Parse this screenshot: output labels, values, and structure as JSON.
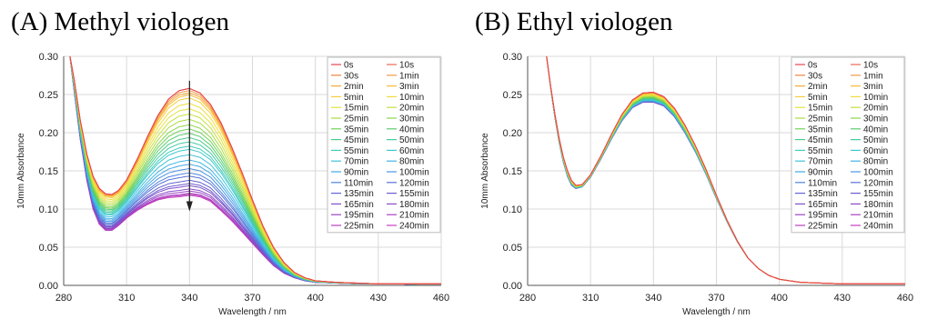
{
  "chart_data": [
    {
      "type": "line",
      "title": "(A) Methyl viologen",
      "xlabel": "Wavelength / nm",
      "ylabel": "10mm Absorbance",
      "xlim": [
        280,
        460
      ],
      "ylim": [
        0,
        0.3
      ],
      "xticks": [
        "280",
        "310",
        "340",
        "370",
        "400",
        "430",
        "460"
      ],
      "yticks": [
        "0.00",
        "0.05",
        "0.10",
        "0.15",
        "0.20",
        "0.25",
        "0.30"
      ],
      "grid": true,
      "legend_position": "top-right",
      "annotation": "downward arrow at 340 nm: absorbance decreasing with time",
      "profile": {
        "x": [
          283,
          285,
          288,
          291,
          294,
          297,
          300,
          303,
          306,
          310,
          315,
          320,
          325,
          330,
          335,
          340,
          345,
          350,
          355,
          360,
          365,
          370,
          375,
          380,
          385,
          390,
          395,
          400,
          410,
          420,
          430,
          440,
          450,
          460
        ],
        "start": [
          0.3,
          0.27,
          0.215,
          0.172,
          0.143,
          0.127,
          0.12,
          0.119,
          0.124,
          0.138,
          0.165,
          0.195,
          0.223,
          0.244,
          0.255,
          0.258,
          0.252,
          0.237,
          0.213,
          0.182,
          0.148,
          0.112,
          0.078,
          0.05,
          0.03,
          0.017,
          0.01,
          0.006,
          0.004,
          0.003,
          0.002,
          0.002,
          0.002,
          0.002
        ],
        "end": [
          0.3,
          0.255,
          0.19,
          0.138,
          0.1,
          0.08,
          0.072,
          0.072,
          0.078,
          0.088,
          0.098,
          0.106,
          0.112,
          0.115,
          0.116,
          0.118,
          0.116,
          0.11,
          0.098,
          0.085,
          0.07,
          0.055,
          0.04,
          0.026,
          0.016,
          0.01,
          0.006,
          0.004,
          0.003,
          0.002,
          0.002,
          0.002,
          0.001,
          0.001
        ]
      },
      "series": [
        {
          "name": "0s",
          "fraction": 0.0,
          "color": "#e8434f"
        },
        {
          "name": "10s",
          "fraction": 0.0,
          "color": "#ea6a58"
        },
        {
          "name": "30s",
          "fraction": 0.0,
          "color": "#ee8245"
        },
        {
          "name": "1min",
          "fraction": 0.02,
          "color": "#f29a48"
        },
        {
          "name": "2min",
          "fraction": 0.04,
          "color": "#f5a93b"
        },
        {
          "name": "3min",
          "fraction": 0.06,
          "color": "#f7bd3c"
        },
        {
          "name": "5min",
          "fraction": 0.09,
          "color": "#f5cf3a"
        },
        {
          "name": "10min",
          "fraction": 0.14,
          "color": "#f1dc3c"
        },
        {
          "name": "15min",
          "fraction": 0.19,
          "color": "#e3e23c"
        },
        {
          "name": "20min",
          "fraction": 0.24,
          "color": "#c6e03e"
        },
        {
          "name": "25min",
          "fraction": 0.29,
          "color": "#a9dc44"
        },
        {
          "name": "30min",
          "fraction": 0.34,
          "color": "#8bd64c"
        },
        {
          "name": "35min",
          "fraction": 0.38,
          "color": "#6fd159"
        },
        {
          "name": "40min",
          "fraction": 0.42,
          "color": "#58cc6c"
        },
        {
          "name": "45min",
          "fraction": 0.46,
          "color": "#4acb86"
        },
        {
          "name": "50min",
          "fraction": 0.5,
          "color": "#43cba1"
        },
        {
          "name": "55min",
          "fraction": 0.54,
          "color": "#40ccbb"
        },
        {
          "name": "60min",
          "fraction": 0.57,
          "color": "#3ec9cf"
        },
        {
          "name": "70min",
          "fraction": 0.62,
          "color": "#40c2dd"
        },
        {
          "name": "80min",
          "fraction": 0.67,
          "color": "#42b6e5"
        },
        {
          "name": "90min",
          "fraction": 0.71,
          "color": "#46a6e6"
        },
        {
          "name": "100min",
          "fraction": 0.75,
          "color": "#4b94e3"
        },
        {
          "name": "110min",
          "fraction": 0.79,
          "color": "#5082de"
        },
        {
          "name": "120min",
          "fraction": 0.82,
          "color": "#5872d8"
        },
        {
          "name": "135min",
          "fraction": 0.86,
          "color": "#6364d2"
        },
        {
          "name": "155min",
          "fraction": 0.89,
          "color": "#705acd"
        },
        {
          "name": "165min",
          "fraction": 0.91,
          "color": "#7d52c9"
        },
        {
          "name": "180min",
          "fraction": 0.94,
          "color": "#8b4ac6"
        },
        {
          "name": "195min",
          "fraction": 0.96,
          "color": "#9a45c4"
        },
        {
          "name": "210min",
          "fraction": 0.98,
          "color": "#aa41c2"
        },
        {
          "name": "225min",
          "fraction": 0.99,
          "color": "#b940c0"
        },
        {
          "name": "240min",
          "fraction": 1.0,
          "color": "#c63fbd"
        }
      ]
    },
    {
      "type": "line",
      "title": "(B) Ethyl viologen",
      "xlabel": "Wavelength / nm",
      "ylabel": "10mm Absorbance",
      "xlim": [
        280,
        460
      ],
      "ylim": [
        0,
        0.3
      ],
      "xticks": [
        "280",
        "310",
        "340",
        "370",
        "400",
        "430",
        "460"
      ],
      "yticks": [
        "0.00",
        "0.05",
        "0.10",
        "0.15",
        "0.20",
        "0.25",
        "0.30"
      ],
      "grid": true,
      "legend_position": "top-right",
      "profile": {
        "x": [
          289,
          291,
          293,
          295,
          297,
          299,
          301,
          303,
          306,
          310,
          315,
          320,
          325,
          330,
          335,
          340,
          345,
          350,
          355,
          360,
          365,
          370,
          375,
          380,
          385,
          390,
          395,
          400,
          410,
          420,
          430,
          440,
          450,
          460
        ],
        "start": [
          0.3,
          0.26,
          0.224,
          0.193,
          0.168,
          0.15,
          0.137,
          0.131,
          0.132,
          0.145,
          0.17,
          0.198,
          0.224,
          0.243,
          0.252,
          0.253,
          0.247,
          0.232,
          0.21,
          0.183,
          0.152,
          0.118,
          0.086,
          0.058,
          0.036,
          0.022,
          0.013,
          0.008,
          0.004,
          0.003,
          0.002,
          0.002,
          0.002,
          0.002
        ],
        "end": [
          0.3,
          0.258,
          0.22,
          0.188,
          0.162,
          0.143,
          0.131,
          0.127,
          0.129,
          0.142,
          0.166,
          0.192,
          0.216,
          0.233,
          0.24,
          0.24,
          0.235,
          0.221,
          0.2,
          0.175,
          0.146,
          0.114,
          0.084,
          0.057,
          0.036,
          0.022,
          0.013,
          0.008,
          0.004,
          0.003,
          0.002,
          0.002,
          0.002,
          0.002
        ]
      },
      "series": [
        {
          "name": "0s",
          "fraction": 0.0,
          "color": "#e8434f"
        },
        {
          "name": "10s",
          "fraction": 0.0,
          "color": "#ea6a58"
        },
        {
          "name": "30s",
          "fraction": 0.0,
          "color": "#ee8245"
        },
        {
          "name": "1min",
          "fraction": 0.05,
          "color": "#f29a48"
        },
        {
          "name": "2min",
          "fraction": 0.08,
          "color": "#f5a93b"
        },
        {
          "name": "3min",
          "fraction": 0.11,
          "color": "#f7bd3c"
        },
        {
          "name": "5min",
          "fraction": 0.15,
          "color": "#f5cf3a"
        },
        {
          "name": "10min",
          "fraction": 0.22,
          "color": "#f1dc3c"
        },
        {
          "name": "15min",
          "fraction": 0.28,
          "color": "#e3e23c"
        },
        {
          "name": "20min",
          "fraction": 0.34,
          "color": "#c6e03e"
        },
        {
          "name": "25min",
          "fraction": 0.4,
          "color": "#a9dc44"
        },
        {
          "name": "30min",
          "fraction": 0.46,
          "color": "#8bd64c"
        },
        {
          "name": "35min",
          "fraction": 0.52,
          "color": "#6fd159"
        },
        {
          "name": "40min",
          "fraction": 0.57,
          "color": "#58cc6c"
        },
        {
          "name": "45min",
          "fraction": 0.62,
          "color": "#4acb86"
        },
        {
          "name": "50min",
          "fraction": 0.67,
          "color": "#43cba1"
        },
        {
          "name": "55min",
          "fraction": 0.71,
          "color": "#40ccbb"
        },
        {
          "name": "60min",
          "fraction": 0.75,
          "color": "#3ec9cf"
        },
        {
          "name": "70min",
          "fraction": 0.79,
          "color": "#40c2dd"
        },
        {
          "name": "80min",
          "fraction": 0.83,
          "color": "#42b6e5"
        },
        {
          "name": "90min",
          "fraction": 0.86,
          "color": "#46a6e6"
        },
        {
          "name": "100min",
          "fraction": 0.89,
          "color": "#4b94e3"
        },
        {
          "name": "110min",
          "fraction": 0.91,
          "color": "#5082de"
        },
        {
          "name": "120min",
          "fraction": 0.93,
          "color": "#5872d8"
        },
        {
          "name": "135min",
          "fraction": 0.95,
          "color": "#6364d2"
        },
        {
          "name": "155min",
          "fraction": 0.96,
          "color": "#705acd"
        },
        {
          "name": "165min",
          "fraction": 0.97,
          "color": "#7d52c9"
        },
        {
          "name": "180min",
          "fraction": 0.98,
          "color": "#8b4ac6"
        },
        {
          "name": "195min",
          "fraction": 0.99,
          "color": "#9a45c4"
        },
        {
          "name": "210min",
          "fraction": 0.99,
          "color": "#aa41c2"
        },
        {
          "name": "225min",
          "fraction": 1.0,
          "color": "#b940c0"
        },
        {
          "name": "240min",
          "fraction": 1.0,
          "color": "#c63fbd"
        }
      ]
    }
  ]
}
